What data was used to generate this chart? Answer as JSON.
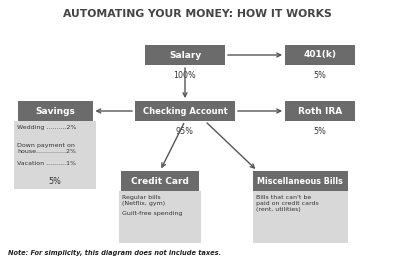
{
  "title": "AUTOMATING YOUR MONEY: HOW IT WORKS",
  "note": "Note: For simplicity, this diagram does not include taxes.",
  "bg_color": "#ffffff",
  "box_dark_color": "#6b6b6b",
  "box_light_color": "#d8d8d8",
  "box_text_dark": "#ffffff",
  "box_text_light": "#333333",
  "title_color": "#444444",
  "note_color": "#222222",
  "arrow_color": "#555555",
  "savings_items": [
    "Wedding ..........2%",
    "Down payment on\nhouse...............2%",
    "Vacation ..........1%"
  ],
  "creditcard_items": [
    "Regular bills\n(Netflix, gym)",
    "Guilt-free spending"
  ],
  "misc_items": [
    "Bills that can't be\npaid on credit cards\n(rent, utilities)"
  ]
}
